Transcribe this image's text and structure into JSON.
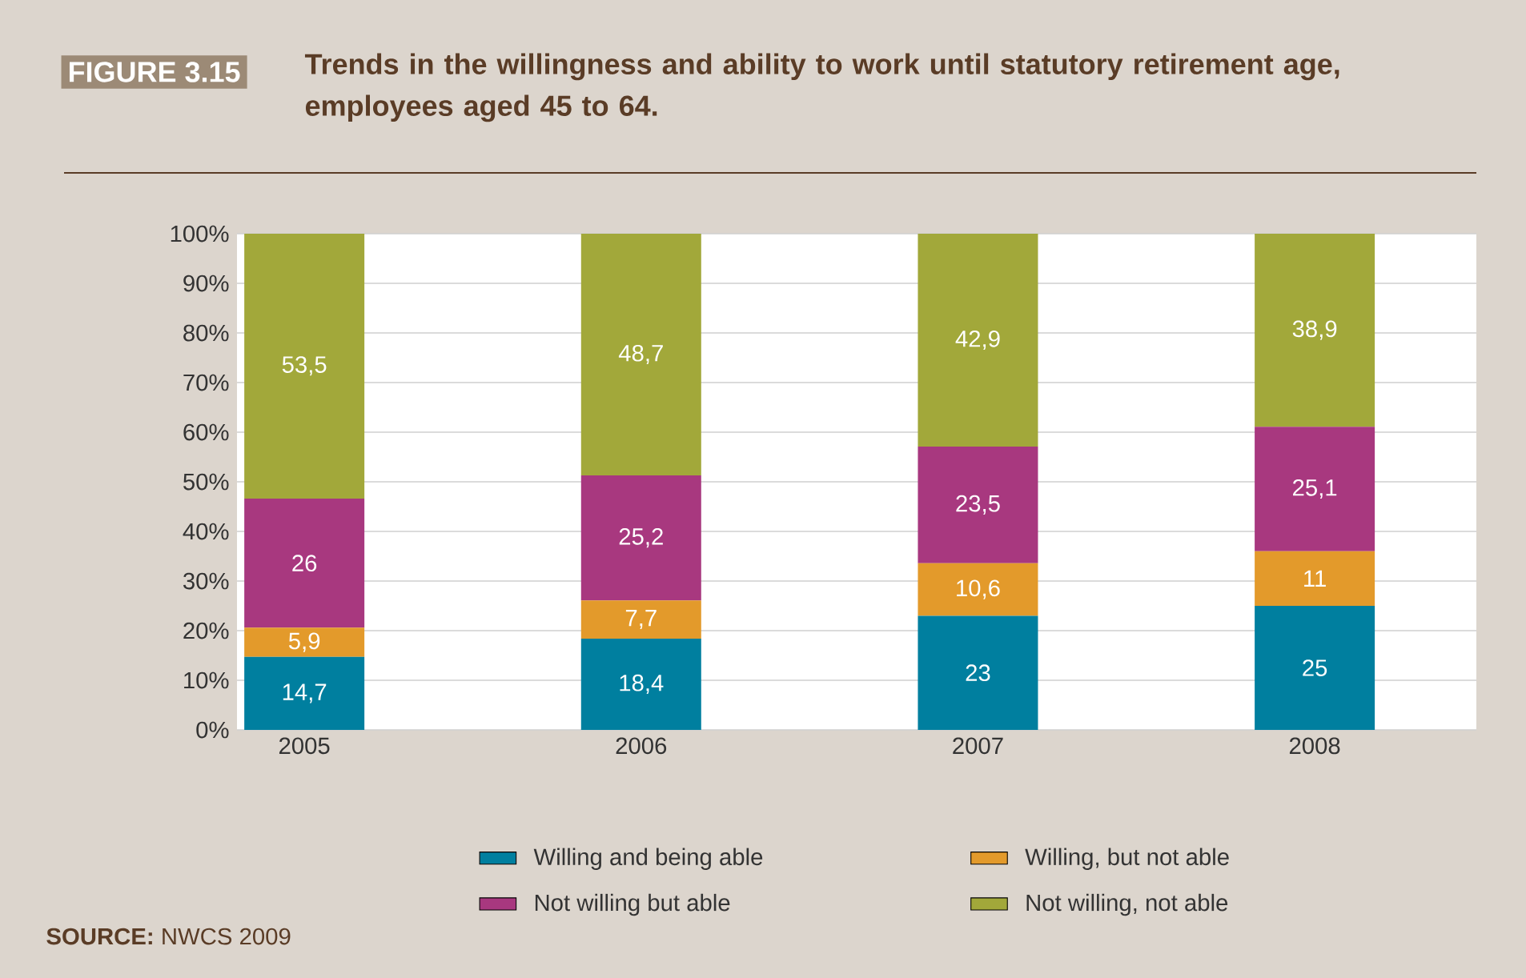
{
  "chart_data": {
    "type": "bar",
    "stacked": true,
    "title": "Trends in the willingness and ability to work until statutory retirement age, employees aged 45 to 64.",
    "annotations": [
      "FIGURE 3.15",
      "**SOURCE:** NWCS 2009"
    ],
    "categories": [
      "2005",
      "2006",
      "2007",
      "2008"
    ],
    "series": [
      {
        "name": "Willing and being able",
        "color": "#007f9f",
        "values": [
          14.7,
          18.4,
          23,
          25
        ],
        "value_labels": [
          "14,7",
          "18,4",
          "23",
          "25"
        ]
      },
      {
        "name": "Willing, but not able",
        "color": "#e39a2b",
        "values": [
          5.9,
          7.7,
          10.6,
          11
        ],
        "value_labels": [
          "5,9",
          "7,7",
          "10,6",
          "11"
        ]
      },
      {
        "name": "Not willing but able",
        "color": "#a8387f",
        "values": [
          26,
          25.2,
          23.5,
          25.1
        ],
        "value_labels": [
          "26",
          "25,2",
          "23,5",
          "25,1"
        ]
      },
      {
        "name": "Not willing, not able",
        "color": "#a2a83a",
        "values": [
          53.5,
          48.7,
          42.9,
          38.9
        ],
        "value_labels": [
          "53,5",
          "48,7",
          "42,9",
          "38,9"
        ]
      }
    ],
    "ylim": [
      0,
      100
    ],
    "yticks": [
      {
        "value": 0,
        "label": "0%"
      },
      {
        "value": 10,
        "label": "10%"
      },
      {
        "value": 20,
        "label": "20%"
      },
      {
        "value": 30,
        "label": "30%"
      },
      {
        "value": 40,
        "label": "40%"
      },
      {
        "value": 50,
        "label": "50%"
      },
      {
        "value": 60,
        "label": "60%"
      },
      {
        "value": 70,
        "label": "70%"
      },
      {
        "value": 80,
        "label": "80%"
      },
      {
        "value": 90,
        "label": "90%"
      },
      {
        "value": 100,
        "label": "100%"
      }
    ],
    "grid": "y",
    "legend": "bottom"
  }
}
